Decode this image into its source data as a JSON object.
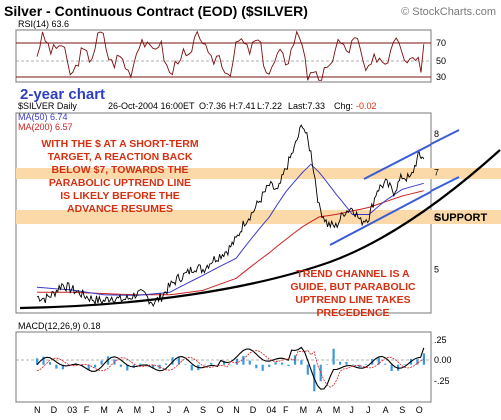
{
  "header": {
    "title": "Silver - Continuous Contract (EOD) ($SILVER)",
    "watermark": "© StockCharts.com"
  },
  "rsi_panel": {
    "label": "RSI(14) 63.6",
    "levels": [
      "70",
      "50",
      "30"
    ],
    "caption": "2-year chart"
  },
  "price_panel": {
    "symbol": "$SILVER Daily",
    "quote": {
      "date": "26-Oct-2004 16:00ET",
      "open": "O:7.36",
      "high": "H:7.41",
      "low": "L:7.22",
      "last": "Last:7.33",
      "change_label": "Chg:",
      "change_value": "-0.02"
    },
    "ma_labels": {
      "ma50": "MA(50) 6.74",
      "ma200": "MA(200) 6.57"
    },
    "annotation_left": [
      "WITH THE $ AT A SHORT-TERM",
      "TARGET, A REACTION BACK",
      "BELOW $7, TOWARDS THE",
      "PARABOLIC UPTREND LINE",
      "IS LIKELY BEFORE THE",
      "ADVANCE RESUMES"
    ],
    "annotation_bottom": [
      "TREND CHANNEL IS A",
      "GUIDE, BUT PARABOLIC",
      "UPTREND LINE TAKES",
      "PRECEDENCE"
    ],
    "support_label": "SUPPORT"
  },
  "macd_panel": {
    "label": "MACD(12,26,9) 0.18",
    "ticks": [
      ".25",
      "0.00",
      "-.25"
    ]
  },
  "colors": {
    "annotation_red": "#d53011",
    "support_band": "#fbd9a8",
    "ma50": "#3b3bc8",
    "ma200": "#cc2222",
    "trendline": "#000000",
    "channel": "#3a5cd6",
    "panel_border": "#7a7a7a",
    "rsi_band": "#7a1010"
  },
  "chart_data": {
    "type": "line",
    "title": "Silver - Continuous Contract (EOD) ($SILVER)",
    "x_tick_labels": [
      "N",
      "D",
      "03",
      "F",
      "M",
      "A",
      "M",
      "J",
      "J",
      "A",
      "S",
      "O",
      "N",
      "D",
      "04",
      "F",
      "M",
      "A",
      "M",
      "J",
      "J",
      "A",
      "S",
      "O"
    ],
    "y_tick_labels": [
      "8",
      "7",
      "6",
      "5"
    ],
    "y_scale": "log",
    "ylim": [
      4.3,
      8.6
    ],
    "support_levels": [
      6,
      7
    ],
    "series": [
      {
        "name": "$SILVER Daily",
        "x": [
          0,
          0.5,
          1,
          1.5,
          2,
          2.5,
          3,
          3.5,
          4,
          4.5,
          5,
          5.5,
          6,
          6.5,
          7,
          7.5,
          8,
          8.5,
          9,
          9.5,
          10,
          10.5,
          11,
          11.5,
          12,
          12.5,
          13,
          13.5,
          14,
          14.5,
          15,
          15.5,
          16,
          16.5,
          17,
          17.5,
          18,
          18.5,
          19,
          19.5,
          20,
          20.5,
          21,
          21.5,
          22,
          22.5,
          23,
          23.3
        ],
        "values": [
          4.55,
          4.52,
          4.6,
          4.75,
          4.68,
          4.62,
          4.55,
          4.5,
          4.48,
          4.55,
          4.5,
          4.52,
          4.6,
          4.58,
          4.45,
          4.55,
          4.72,
          4.85,
          4.92,
          5.05,
          5.0,
          5.15,
          5.25,
          5.35,
          5.55,
          5.9,
          6.1,
          6.4,
          6.7,
          6.55,
          7.1,
          7.6,
          8.3,
          7.5,
          6.2,
          5.85,
          5.8,
          6.1,
          6.2,
          5.9,
          6.0,
          6.6,
          6.75,
          6.55,
          6.9,
          6.85,
          7.45,
          7.33
        ]
      },
      {
        "name": "MA(50) 6.74",
        "x": [
          0,
          2,
          4,
          6,
          8,
          10,
          12,
          13,
          14,
          15,
          16,
          16.5,
          17,
          18,
          19,
          20,
          21,
          22,
          23.3
        ],
        "values": [
          4.7,
          4.66,
          4.58,
          4.57,
          4.62,
          4.9,
          5.2,
          5.6,
          6.0,
          6.55,
          7.0,
          7.2,
          7.0,
          6.5,
          6.05,
          6.05,
          6.35,
          6.6,
          6.74
        ]
      },
      {
        "name": "MA(200) 6.57",
        "x": [
          0,
          2,
          4,
          6,
          8,
          10,
          12,
          14,
          16,
          17,
          18,
          20,
          22,
          23.3
        ],
        "values": [
          4.62,
          4.62,
          4.6,
          4.58,
          4.58,
          4.65,
          4.85,
          5.3,
          5.8,
          6.0,
          6.05,
          6.2,
          6.45,
          6.57
        ]
      }
    ],
    "rsi": {
      "label": "RSI(14)",
      "last": 63.6,
      "levels": [
        70,
        50,
        30
      ],
      "ylim": [
        20,
        80
      ]
    },
    "macd": {
      "label": "MACD(12,26,9)",
      "last": 0.18,
      "ylim": [
        -0.4,
        0.35
      ]
    }
  }
}
